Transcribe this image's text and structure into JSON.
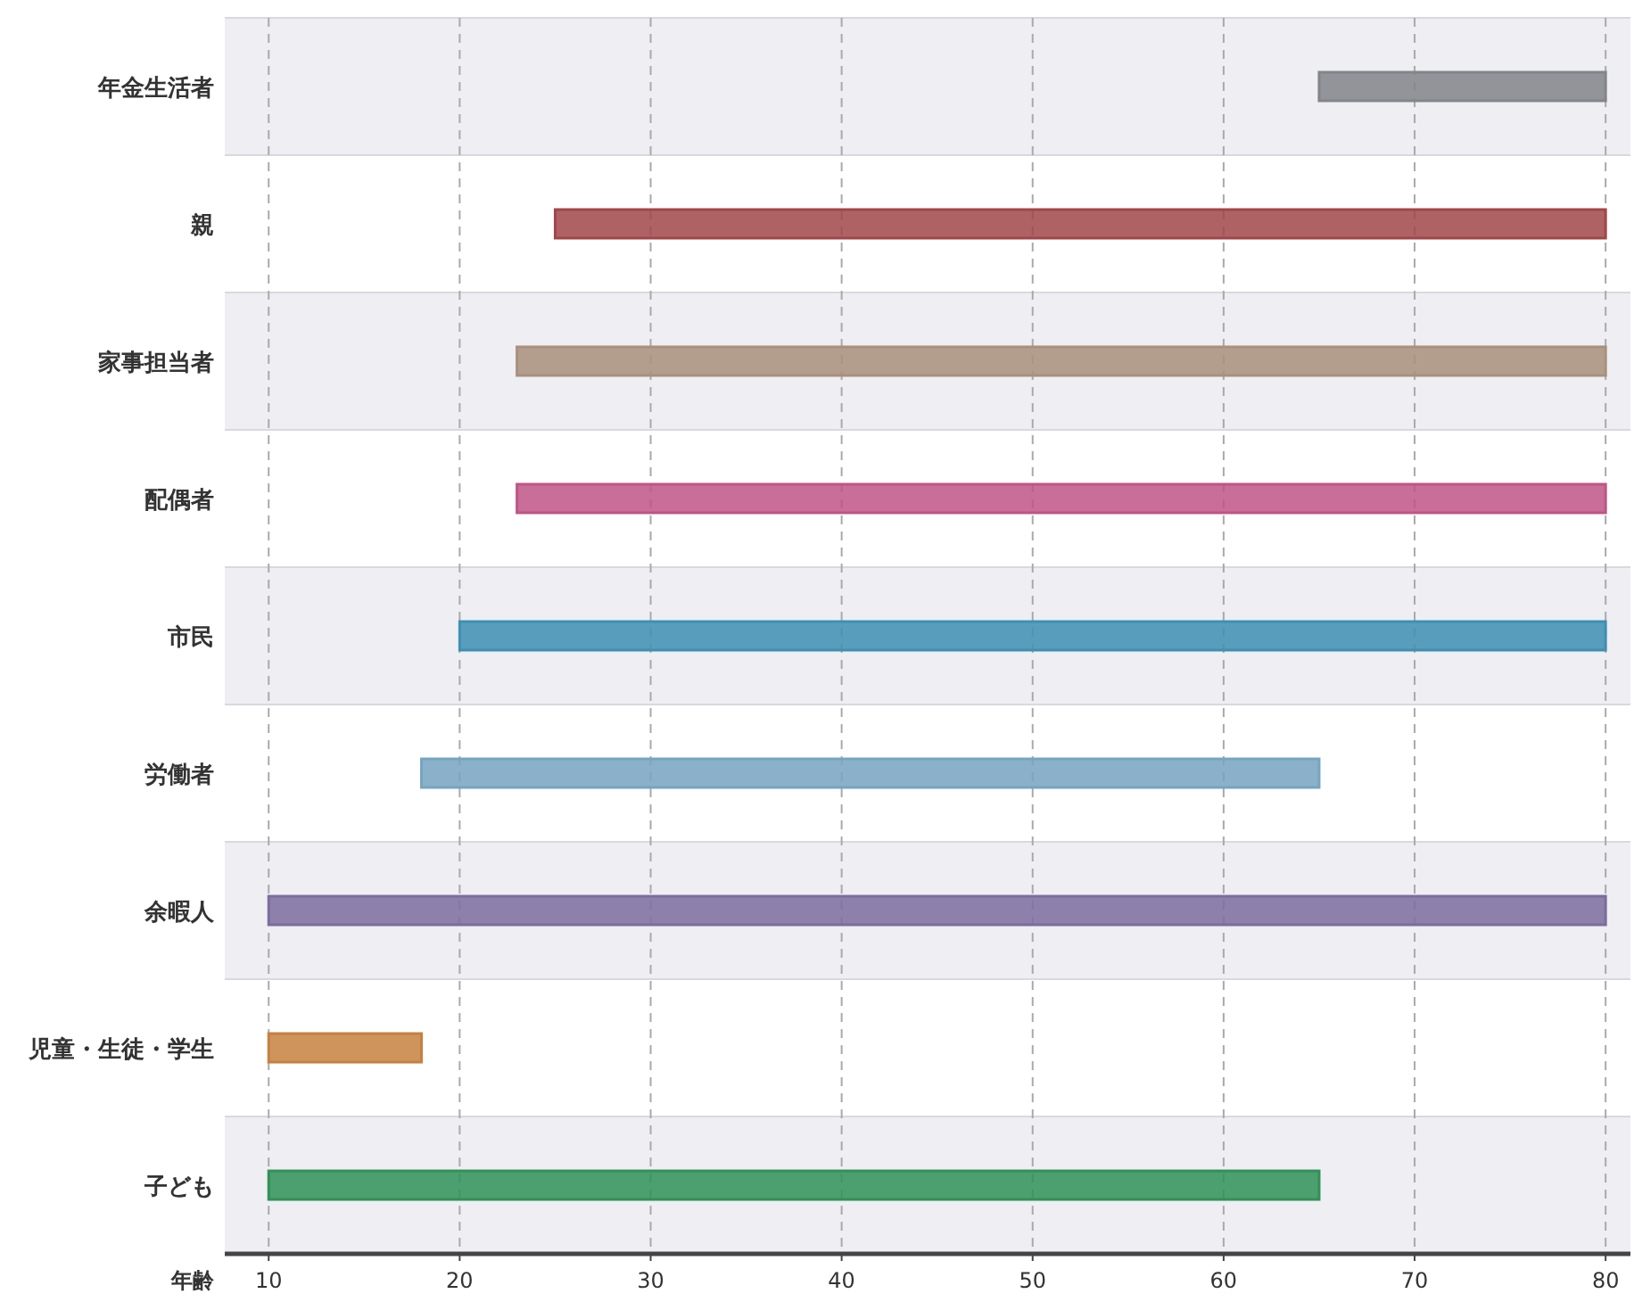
{
  "chart_data": {
    "type": "bar",
    "orientation": "horizontal",
    "xlabel": "年齢",
    "categories": [
      "年金生活者",
      "親",
      "家事担当者",
      "配偶者",
      "市民",
      "労働者",
      "余暇人",
      "児童・生徒・学生",
      "子ども"
    ],
    "base": [
      65,
      25,
      23,
      23,
      20,
      18,
      10,
      10,
      10
    ],
    "values": [
      15,
      55,
      57,
      57,
      60,
      47,
      70,
      8,
      55
    ],
    "colors": [
      "#a3a6ab",
      "#c9585c",
      "#d3b49b",
      "#ee6aa8",
      "#4fb3e0",
      "#93cdf0",
      "#9b88c6",
      "#f8a050",
      "#3cb56c"
    ],
    "xlim": [
      7.7,
      81.3
    ],
    "xticks": [
      10,
      20,
      30,
      40,
      50,
      60,
      70,
      80
    ],
    "grid": "x"
  }
}
